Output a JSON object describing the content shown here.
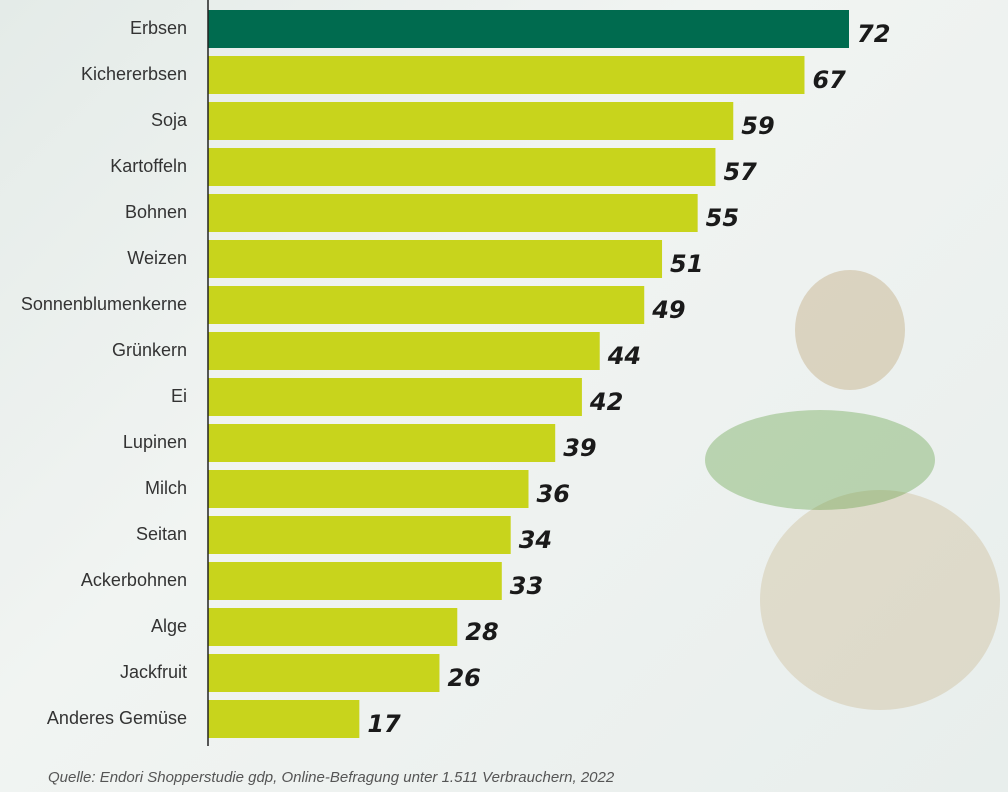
{
  "chart_data": {
    "type": "bar",
    "orientation": "horizontal",
    "categories": [
      "Erbsen",
      "Kichererbsen",
      "Soja",
      "Kartoffeln",
      "Bohnen",
      "Weizen",
      "Sonnenblumenkerne",
      "Grünkern",
      "Ei",
      "Lupinen",
      "Milch",
      "Seitan",
      "Ackerbohnen",
      "Alge",
      "Jackfruit",
      "Anderes Gemüse"
    ],
    "values": [
      72,
      67,
      59,
      57,
      55,
      51,
      49,
      44,
      42,
      39,
      36,
      34,
      33,
      28,
      26,
      17
    ],
    "colors": [
      "#006b4f",
      "#c8d41c",
      "#c8d41c",
      "#c8d41c",
      "#c8d41c",
      "#c8d41c",
      "#c8d41c",
      "#c8d41c",
      "#c8d41c",
      "#c8d41c",
      "#c8d41c",
      "#c8d41c",
      "#c8d41c",
      "#c8d41c",
      "#c8d41c",
      "#c8d41c"
    ],
    "source": "Quelle: Endori Shopperstudie gdp, Online-Befragung unter 1.511 Verbrauchern, 2022"
  }
}
